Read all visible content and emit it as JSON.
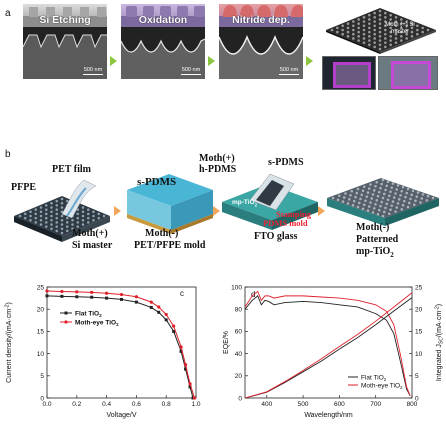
{
  "panel_a": {
    "letter": "a",
    "stages": [
      {
        "label": "Si Etching",
        "scale": "500 nm"
      },
      {
        "label": "Oxidation",
        "scale": "500 nm"
      },
      {
        "label": "Nitride dep.",
        "scale": "500 nm"
      }
    ],
    "master_label": "Moth (+) Si master"
  },
  "panel_b": {
    "letter": "b",
    "labels": {
      "pfpe": "PFPE",
      "pet_film": "PET film",
      "moth_plus_si_1": "Moth(+)",
      "moth_plus_si_2": "Si master",
      "s_pdms_1": "s-PDMS",
      "moth_minus_1": "Moth(-)",
      "moth_minus_2": "PET/PFPE mold",
      "moth_h_pdms_1": "Moth(+)",
      "moth_h_pdms_2": "h-PDMS",
      "s_pdms_2": "s-PDMS",
      "stamping_1": "Stamping",
      "stamping_2": "PDMS mold",
      "mp_tio2_layer": "mp-TiO",
      "fto": "FTO glass",
      "patterned_1": "Moth(-)",
      "patterned_2": "Patterned",
      "patterned_3": "mp-TiO"
    }
  },
  "chart_data": [
    {
      "type": "line",
      "panel": "c",
      "xlabel": "Voltage/V",
      "ylabel": "Current density/(mA·cm",
      "xlim": [
        0.0,
        1.0
      ],
      "ylim": [
        0,
        25
      ],
      "xticks": [
        "0.0",
        "0.2",
        "0.4",
        "0.6",
        "0.8",
        "1.0"
      ],
      "yticks": [
        "0",
        "5",
        "10",
        "15",
        "20",
        "25"
      ],
      "series": [
        {
          "name": "Flat TiO",
          "color": "#222222",
          "marker": "square",
          "x": [
            0.0,
            0.1,
            0.2,
            0.3,
            0.4,
            0.5,
            0.6,
            0.7,
            0.75,
            0.8,
            0.85,
            0.9,
            0.93,
            0.96,
            0.98
          ],
          "y": [
            23.0,
            22.9,
            22.8,
            22.7,
            22.5,
            22.2,
            21.6,
            20.4,
            19.3,
            17.6,
            15.0,
            10.5,
            6.5,
            2.5,
            0.0
          ]
        },
        {
          "name": "Moth-eye TiO",
          "color": "#e0202a",
          "marker": "circle",
          "x": [
            0.0,
            0.1,
            0.2,
            0.3,
            0.4,
            0.5,
            0.6,
            0.7,
            0.75,
            0.8,
            0.85,
            0.9,
            0.93,
            0.96,
            0.99
          ],
          "y": [
            24.1,
            24.0,
            23.9,
            23.8,
            23.6,
            23.3,
            22.8,
            21.6,
            20.5,
            18.8,
            16.2,
            11.5,
            7.5,
            3.2,
            0.0
          ]
        }
      ]
    },
    {
      "type": "line",
      "panel": "d",
      "xlabel": "Wavelength/nm",
      "ylabel": "EQE/%",
      "y2label": "Integrated J",
      "xlim": [
        340,
        800
      ],
      "ylim": [
        0,
        100
      ],
      "y2lim": [
        0,
        25
      ],
      "xticks": [
        "400",
        "500",
        "600",
        "700",
        "800"
      ],
      "yticks": [
        "0",
        "20",
        "40",
        "60",
        "80",
        "100"
      ],
      "y2ticks": [
        "0",
        "5",
        "10",
        "15",
        "20",
        "25"
      ],
      "series": [
        {
          "name": "Flat TiO",
          "color": "#222222",
          "axis": "left",
          "x": [
            340,
            360,
            375,
            385,
            395,
            405,
            420,
            450,
            500,
            550,
            600,
            650,
            700,
            730,
            750,
            770,
            785,
            795
          ],
          "y": [
            80,
            88,
            92,
            84,
            88,
            87,
            84,
            86,
            87,
            86,
            84,
            82,
            76,
            70,
            58,
            30,
            8,
            2
          ]
        },
        {
          "name": "Moth-eye TiO",
          "color": "#e0202a",
          "axis": "left",
          "x": [
            340,
            360,
            375,
            385,
            395,
            405,
            420,
            450,
            500,
            550,
            600,
            650,
            700,
            730,
            750,
            770,
            785,
            795
          ],
          "y": [
            82,
            92,
            96,
            88,
            92,
            92,
            90,
            92,
            92,
            91,
            90,
            88,
            84,
            78,
            66,
            36,
            10,
            2
          ]
        },
        {
          "name": "Flat TiO",
          "color": "#222222",
          "axis": "right",
          "x": [
            340,
            400,
            450,
            500,
            550,
            600,
            650,
            700,
            750,
            800
          ],
          "y": [
            0,
            1.3,
            3.5,
            5.9,
            8.3,
            11.0,
            13.6,
            16.5,
            19.6,
            22.6
          ]
        },
        {
          "name": "Moth-eye TiO",
          "color": "#e0202a",
          "axis": "right",
          "x": [
            340,
            400,
            450,
            500,
            550,
            600,
            650,
            700,
            750,
            800
          ],
          "y": [
            0,
            1.4,
            3.7,
            6.2,
            8.8,
            11.6,
            14.3,
            17.3,
            20.5,
            23.7
          ]
        }
      ]
    }
  ]
}
